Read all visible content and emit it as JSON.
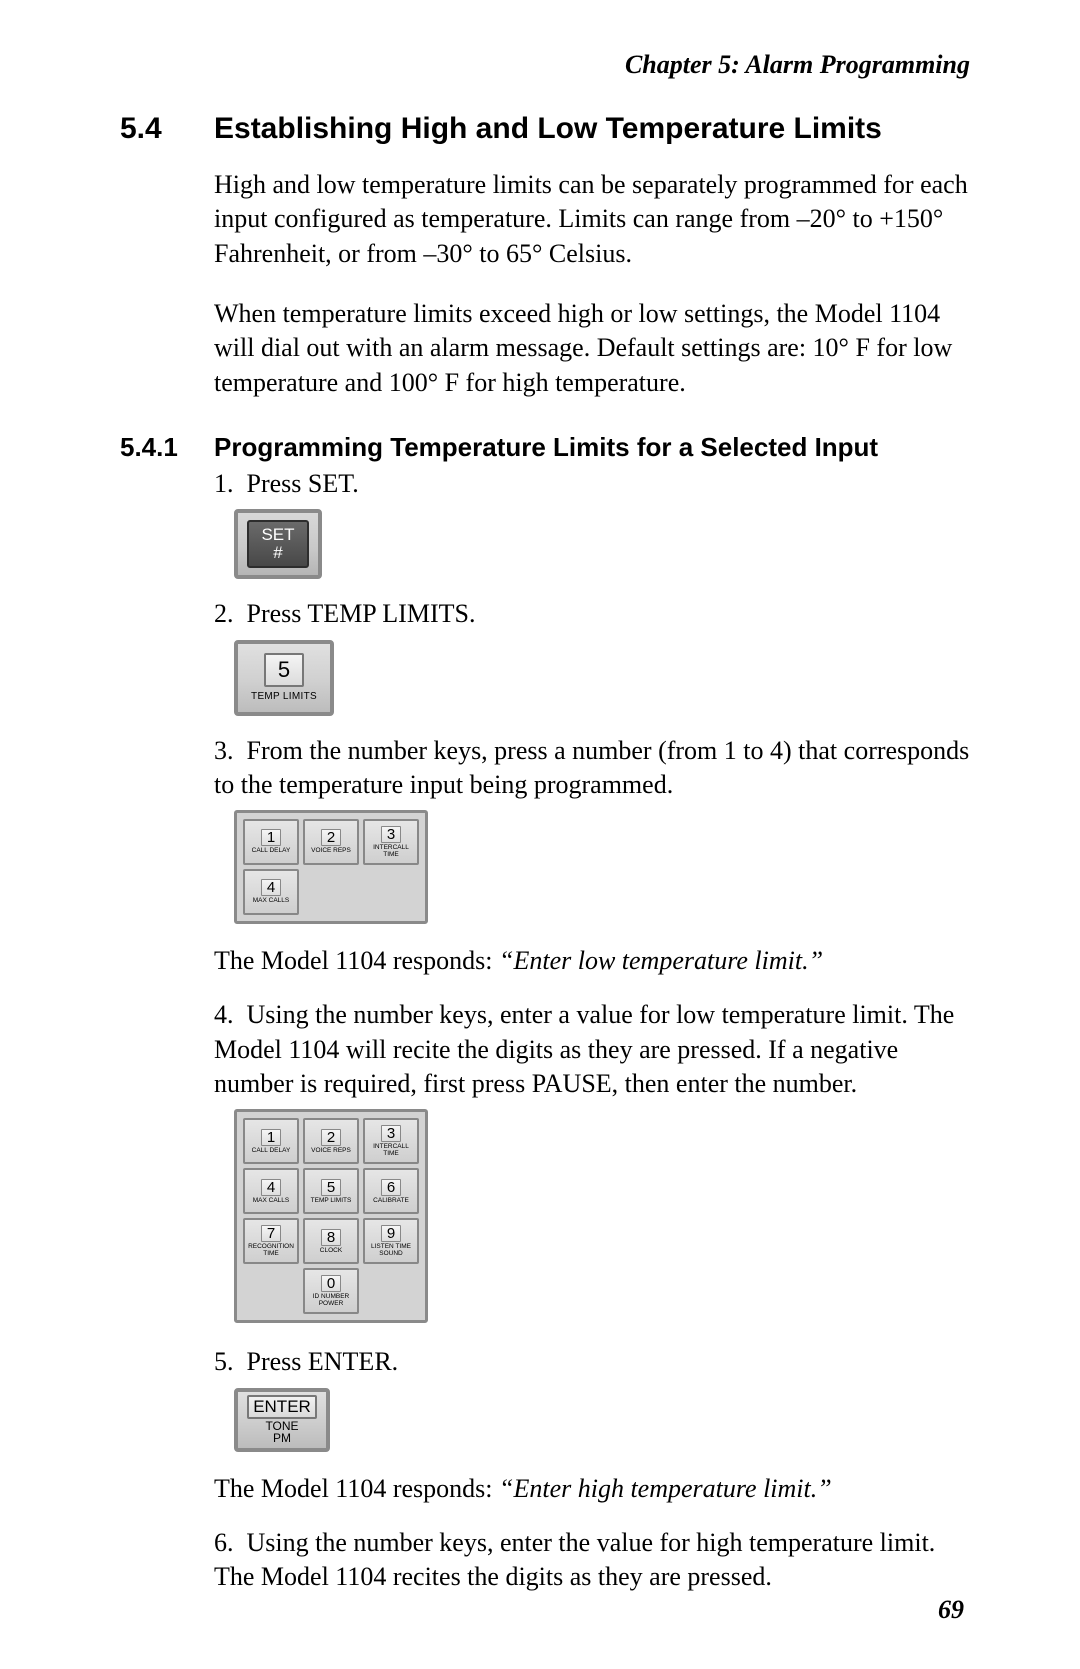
{
  "chapter_header": "Chapter 5: Alarm Programming",
  "section": {
    "num": "5.4",
    "title": "Establishing High and Low Temperature Limits"
  },
  "intro_para_1": "High and low temperature limits can be separately programmed for each input configured as temperature. Limits can range from –20° to +150° Fahrenheit, or from –30° to 65° Celsius.",
  "intro_para_2": "When temperature limits exceed high or low settings, the Model 1104 will dial out with an alarm message. Default settings are: 10° F for low temperature and 100° F for high temperature.",
  "subsection": {
    "num": "5.4.1",
    "title": "Programming Temperature Limits for a Selected Input"
  },
  "steps": {
    "s1": {
      "num": "1.",
      "text": "Press SET."
    },
    "s2": {
      "num": "2.",
      "text": "Press TEMP LIMITS."
    },
    "s3": {
      "num": "3.",
      "text": "From the number keys, press a number (from 1 to 4) that corresponds to the temperature input being programmed."
    },
    "s4": {
      "num": "4.",
      "text": "Using the number keys, enter a value for low temperature limit. The Model 1104 will recite the digits as they are pressed. If a negative number is required, first press PAUSE, then enter the number."
    },
    "s5": {
      "num": "5.",
      "text": "Press ENTER."
    },
    "s6": {
      "num": "6.",
      "text": "Using the number keys, enter the value for high temperature limit. The Model 1104 recites the digits as they are pressed."
    }
  },
  "response1": {
    "lead": "The Model 1104 responds: ",
    "quote": "“Enter low temperature limit.”"
  },
  "response2": {
    "lead": "The Model 1104 responds: ",
    "quote": "“Enter high temperature limit.”"
  },
  "keys": {
    "set": {
      "line1": "SET",
      "line2": "#"
    },
    "temp": {
      "num": "5",
      "label": "TEMP LIMITS"
    },
    "enter": {
      "top": "ENTER",
      "sub1": "TONE",
      "sub2": "PM"
    },
    "pad4": [
      {
        "n": "1",
        "t": "CALL DELAY"
      },
      {
        "n": "2",
        "t": "VOICE REPS"
      },
      {
        "n": "3",
        "t": "INTERCALL TIME"
      },
      {
        "n": "4",
        "t": "MAX CALLS"
      }
    ],
    "pad10": [
      {
        "n": "1",
        "t": "CALL DELAY"
      },
      {
        "n": "2",
        "t": "VOICE REPS"
      },
      {
        "n": "3",
        "t": "INTERCALL TIME"
      },
      {
        "n": "4",
        "t": "MAX CALLS"
      },
      {
        "n": "5",
        "t": "TEMP LIMITS"
      },
      {
        "n": "6",
        "t": "CALIBRATE"
      },
      {
        "n": "7",
        "t": "RECOGNITION TIME"
      },
      {
        "n": "8",
        "t": "CLOCK"
      },
      {
        "n": "9",
        "t": "LISTEN TIME SOUND"
      },
      {
        "n": "0",
        "t": "ID NUMBER POWER"
      }
    ]
  },
  "page_number": "69"
}
